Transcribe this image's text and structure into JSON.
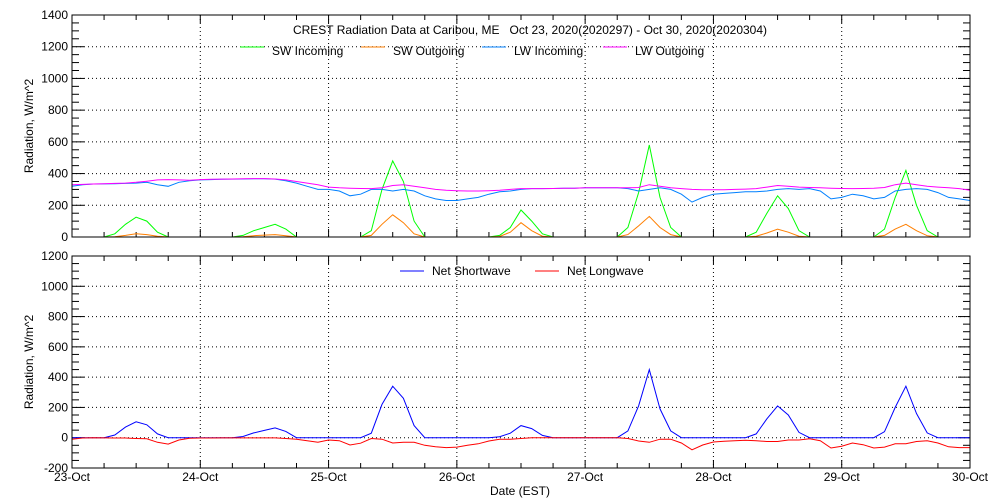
{
  "chart_data": [
    {
      "type": "line",
      "title": "CREST Radiation Data at Caribou, ME   Oct 23, 2020(2020297) - Oct 30, 2020(2020304)",
      "xlabel": "",
      "ylabel": "Radiation, W/m^2",
      "ylim": [
        0,
        1400
      ],
      "yticks": [
        "0",
        "200",
        "400",
        "600",
        "800",
        "1000",
        "1200",
        "1400"
      ],
      "x_start_label": "23-Oct",
      "x_step_hours": 2,
      "grid": true,
      "legend_position": "top-center",
      "series": [
        {
          "name": "SW Incoming",
          "color": "#00ff00",
          "values": [
            0,
            0,
            0,
            0,
            20,
            80,
            125,
            100,
            30,
            0,
            0,
            0,
            0,
            0,
            0,
            0,
            10,
            40,
            60,
            80,
            50,
            0,
            0,
            0,
            0,
            0,
            0,
            0,
            40,
            300,
            480,
            350,
            100,
            0,
            0,
            0,
            0,
            0,
            0,
            0,
            10,
            60,
            170,
            100,
            20,
            0,
            0,
            0,
            0,
            0,
            0,
            0,
            60,
            280,
            580,
            250,
            60,
            0,
            0,
            0,
            0,
            0,
            0,
            0,
            30,
            150,
            260,
            180,
            40,
            0,
            0,
            0,
            0,
            0,
            0,
            0,
            50,
            250,
            420,
            200,
            40,
            0,
            0,
            0,
            0
          ]
        },
        {
          "name": "SW Outgoing",
          "color": "#ff7f00",
          "values": [
            0,
            0,
            0,
            0,
            2,
            10,
            20,
            15,
            5,
            0,
            0,
            0,
            0,
            0,
            0,
            0,
            2,
            8,
            12,
            15,
            8,
            0,
            0,
            0,
            0,
            0,
            0,
            0,
            10,
            80,
            140,
            90,
            20,
            0,
            0,
            0,
            0,
            0,
            0,
            0,
            3,
            30,
            90,
            40,
            5,
            0,
            0,
            0,
            0,
            0,
            0,
            0,
            15,
            70,
            130,
            60,
            15,
            0,
            0,
            0,
            0,
            0,
            0,
            0,
            5,
            25,
            50,
            30,
            5,
            0,
            0,
            0,
            0,
            0,
            0,
            0,
            10,
            50,
            80,
            40,
            8,
            0,
            0,
            0,
            0
          ]
        },
        {
          "name": "LW Incoming",
          "color": "#0080ff",
          "values": [
            320,
            330,
            334,
            335,
            336,
            338,
            340,
            345,
            330,
            320,
            345,
            355,
            360,
            362,
            364,
            365,
            366,
            367,
            367,
            365,
            355,
            340,
            320,
            300,
            300,
            290,
            260,
            270,
            300,
            300,
            290,
            300,
            290,
            260,
            240,
            230,
            230,
            240,
            250,
            270,
            285,
            290,
            300,
            305,
            305,
            306,
            308,
            308,
            310,
            310,
            310,
            310,
            305,
            290,
            300,
            310,
            300,
            270,
            220,
            250,
            270,
            275,
            280,
            285,
            285,
            290,
            300,
            305,
            300,
            305,
            290,
            240,
            250,
            270,
            260,
            240,
            250,
            290,
            300,
            305,
            300,
            280,
            250,
            240,
            230
          ]
        },
        {
          "name": "LW Outgoing",
          "color": "#ff00ff",
          "values": [
            330,
            332,
            334,
            336,
            338,
            340,
            345,
            352,
            360,
            362,
            360,
            358,
            362,
            364,
            365,
            366,
            367,
            368,
            368,
            366,
            360,
            350,
            340,
            330,
            315,
            310,
            308,
            306,
            305,
            310,
            325,
            330,
            320,
            310,
            300,
            295,
            292,
            290,
            290,
            292,
            295,
            300,
            305,
            305,
            305,
            306,
            308,
            308,
            310,
            310,
            310,
            310,
            310,
            312,
            330,
            320,
            310,
            305,
            300,
            298,
            298,
            298,
            300,
            302,
            305,
            315,
            325,
            320,
            315,
            312,
            310,
            308,
            306,
            305,
            306,
            308,
            312,
            330,
            340,
            330,
            320,
            315,
            310,
            305,
            295
          ]
        }
      ]
    },
    {
      "type": "line",
      "title": "",
      "xlabel": "Date (EST)",
      "ylabel": "Radiation, W/m^2",
      "ylim": [
        -200,
        1200
      ],
      "yticks": [
        "-200",
        "0",
        "200",
        "400",
        "600",
        "800",
        "1000",
        "1200"
      ],
      "xticks": [
        "23-Oct",
        "24-Oct",
        "25-Oct",
        "26-Oct",
        "27-Oct",
        "28-Oct",
        "29-Oct",
        "30-Oct"
      ],
      "x_start_label": "23-Oct",
      "x_step_hours": 2,
      "grid": true,
      "legend_position": "top-center",
      "series": [
        {
          "name": "Net Shortwave",
          "color": "#0000ff",
          "values": [
            0,
            0,
            0,
            0,
            18,
            70,
            105,
            85,
            25,
            0,
            0,
            0,
            0,
            0,
            0,
            0,
            8,
            32,
            48,
            65,
            42,
            0,
            0,
            0,
            0,
            0,
            0,
            0,
            30,
            220,
            340,
            260,
            80,
            0,
            0,
            0,
            0,
            0,
            0,
            0,
            7,
            30,
            80,
            60,
            15,
            0,
            0,
            0,
            0,
            0,
            0,
            0,
            45,
            210,
            450,
            190,
            45,
            0,
            0,
            0,
            0,
            0,
            0,
            0,
            25,
            125,
            210,
            150,
            35,
            0,
            0,
            0,
            0,
            0,
            0,
            0,
            40,
            200,
            340,
            160,
            32,
            0,
            0,
            0,
            0
          ]
        },
        {
          "name": "Net Longwave",
          "color": "#ff0000",
          "values": [
            -10,
            -2,
            0,
            -1,
            -2,
            -2,
            -5,
            -7,
            -30,
            -42,
            -15,
            -3,
            -2,
            -2,
            -1,
            -1,
            -1,
            -1,
            -1,
            -1,
            -5,
            -10,
            -20,
            -30,
            -15,
            -20,
            -48,
            -36,
            -5,
            -10,
            -35,
            -30,
            -30,
            -50,
            -60,
            -65,
            -62,
            -50,
            -40,
            -22,
            -10,
            -10,
            -5,
            0,
            0,
            0,
            0,
            0,
            0,
            0,
            0,
            0,
            -5,
            -22,
            -30,
            -10,
            -10,
            -35,
            -80,
            -48,
            -28,
            -23,
            -20,
            -17,
            -20,
            -25,
            -25,
            -15,
            -15,
            -7,
            -20,
            -68,
            -56,
            -35,
            -46,
            -68,
            -62,
            -40,
            -40,
            -25,
            -20,
            -35,
            -60,
            -65,
            -65
          ]
        }
      ]
    }
  ]
}
